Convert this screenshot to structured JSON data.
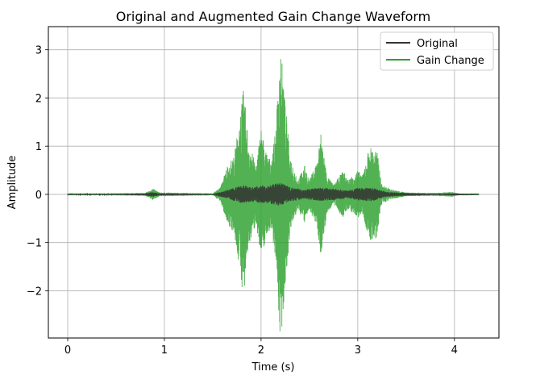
{
  "chart_data": {
    "type": "line",
    "title": "Original and Augmented Gain Change Waveform",
    "xlabel": "Time (s)",
    "ylabel": "Amplitude",
    "xlim": [
      -0.2,
      4.46
    ],
    "ylim": [
      -2.98,
      3.48
    ],
    "x_ticks": [
      0,
      1,
      2,
      3,
      4
    ],
    "y_ticks": [
      -2,
      -1,
      0,
      1,
      2,
      3
    ],
    "grid": true,
    "legend_position": "top-right",
    "series": [
      {
        "name": "Original",
        "color": "#333333",
        "envelope": [
          [
            0.0,
            0.01
          ],
          [
            0.4,
            0.01
          ],
          [
            0.8,
            0.02
          ],
          [
            0.88,
            0.05
          ],
          [
            0.95,
            0.02
          ],
          [
            1.5,
            0.01
          ],
          [
            1.6,
            0.06
          ],
          [
            1.7,
            0.12
          ],
          [
            1.8,
            0.2
          ],
          [
            1.9,
            0.15
          ],
          [
            2.0,
            0.18
          ],
          [
            2.1,
            0.2
          ],
          [
            2.2,
            0.24
          ],
          [
            2.3,
            0.15
          ],
          [
            2.45,
            0.1
          ],
          [
            2.6,
            0.14
          ],
          [
            2.75,
            0.12
          ],
          [
            2.9,
            0.08
          ],
          [
            3.0,
            0.13
          ],
          [
            3.15,
            0.14
          ],
          [
            3.3,
            0.05
          ],
          [
            3.5,
            0.03
          ],
          [
            3.8,
            0.01
          ],
          [
            4.0,
            0.02
          ],
          [
            4.25,
            0.01
          ]
        ]
      },
      {
        "name": "Gain Change",
        "color": "#2ca02c",
        "envelope": [
          [
            0.0,
            0.02
          ],
          [
            0.4,
            0.02
          ],
          [
            0.8,
            0.03
          ],
          [
            0.88,
            0.12
          ],
          [
            0.95,
            0.04
          ],
          [
            1.5,
            0.02
          ],
          [
            1.58,
            0.15
          ],
          [
            1.65,
            0.6
          ],
          [
            1.72,
            0.8
          ],
          [
            1.78,
            1.6
          ],
          [
            1.82,
            2.2
          ],
          [
            1.87,
            1.1
          ],
          [
            1.95,
            0.6
          ],
          [
            2.0,
            1.4
          ],
          [
            2.05,
            0.9
          ],
          [
            2.1,
            0.7
          ],
          [
            2.15,
            1.3
          ],
          [
            2.2,
            3.15
          ],
          [
            2.25,
            1.9
          ],
          [
            2.3,
            0.8
          ],
          [
            2.38,
            0.3
          ],
          [
            2.45,
            0.6
          ],
          [
            2.5,
            0.3
          ],
          [
            2.58,
            0.7
          ],
          [
            2.62,
            1.3
          ],
          [
            2.68,
            0.4
          ],
          [
            2.75,
            0.2
          ],
          [
            2.85,
            0.5
          ],
          [
            2.9,
            0.3
          ],
          [
            3.0,
            0.5
          ],
          [
            3.05,
            0.4
          ],
          [
            3.12,
            1.0
          ],
          [
            3.2,
            0.9
          ],
          [
            3.25,
            0.2
          ],
          [
            3.35,
            0.1
          ],
          [
            3.5,
            0.04
          ],
          [
            3.8,
            0.03
          ],
          [
            3.98,
            0.05
          ],
          [
            4.05,
            0.02
          ],
          [
            4.25,
            0.02
          ]
        ]
      }
    ]
  }
}
